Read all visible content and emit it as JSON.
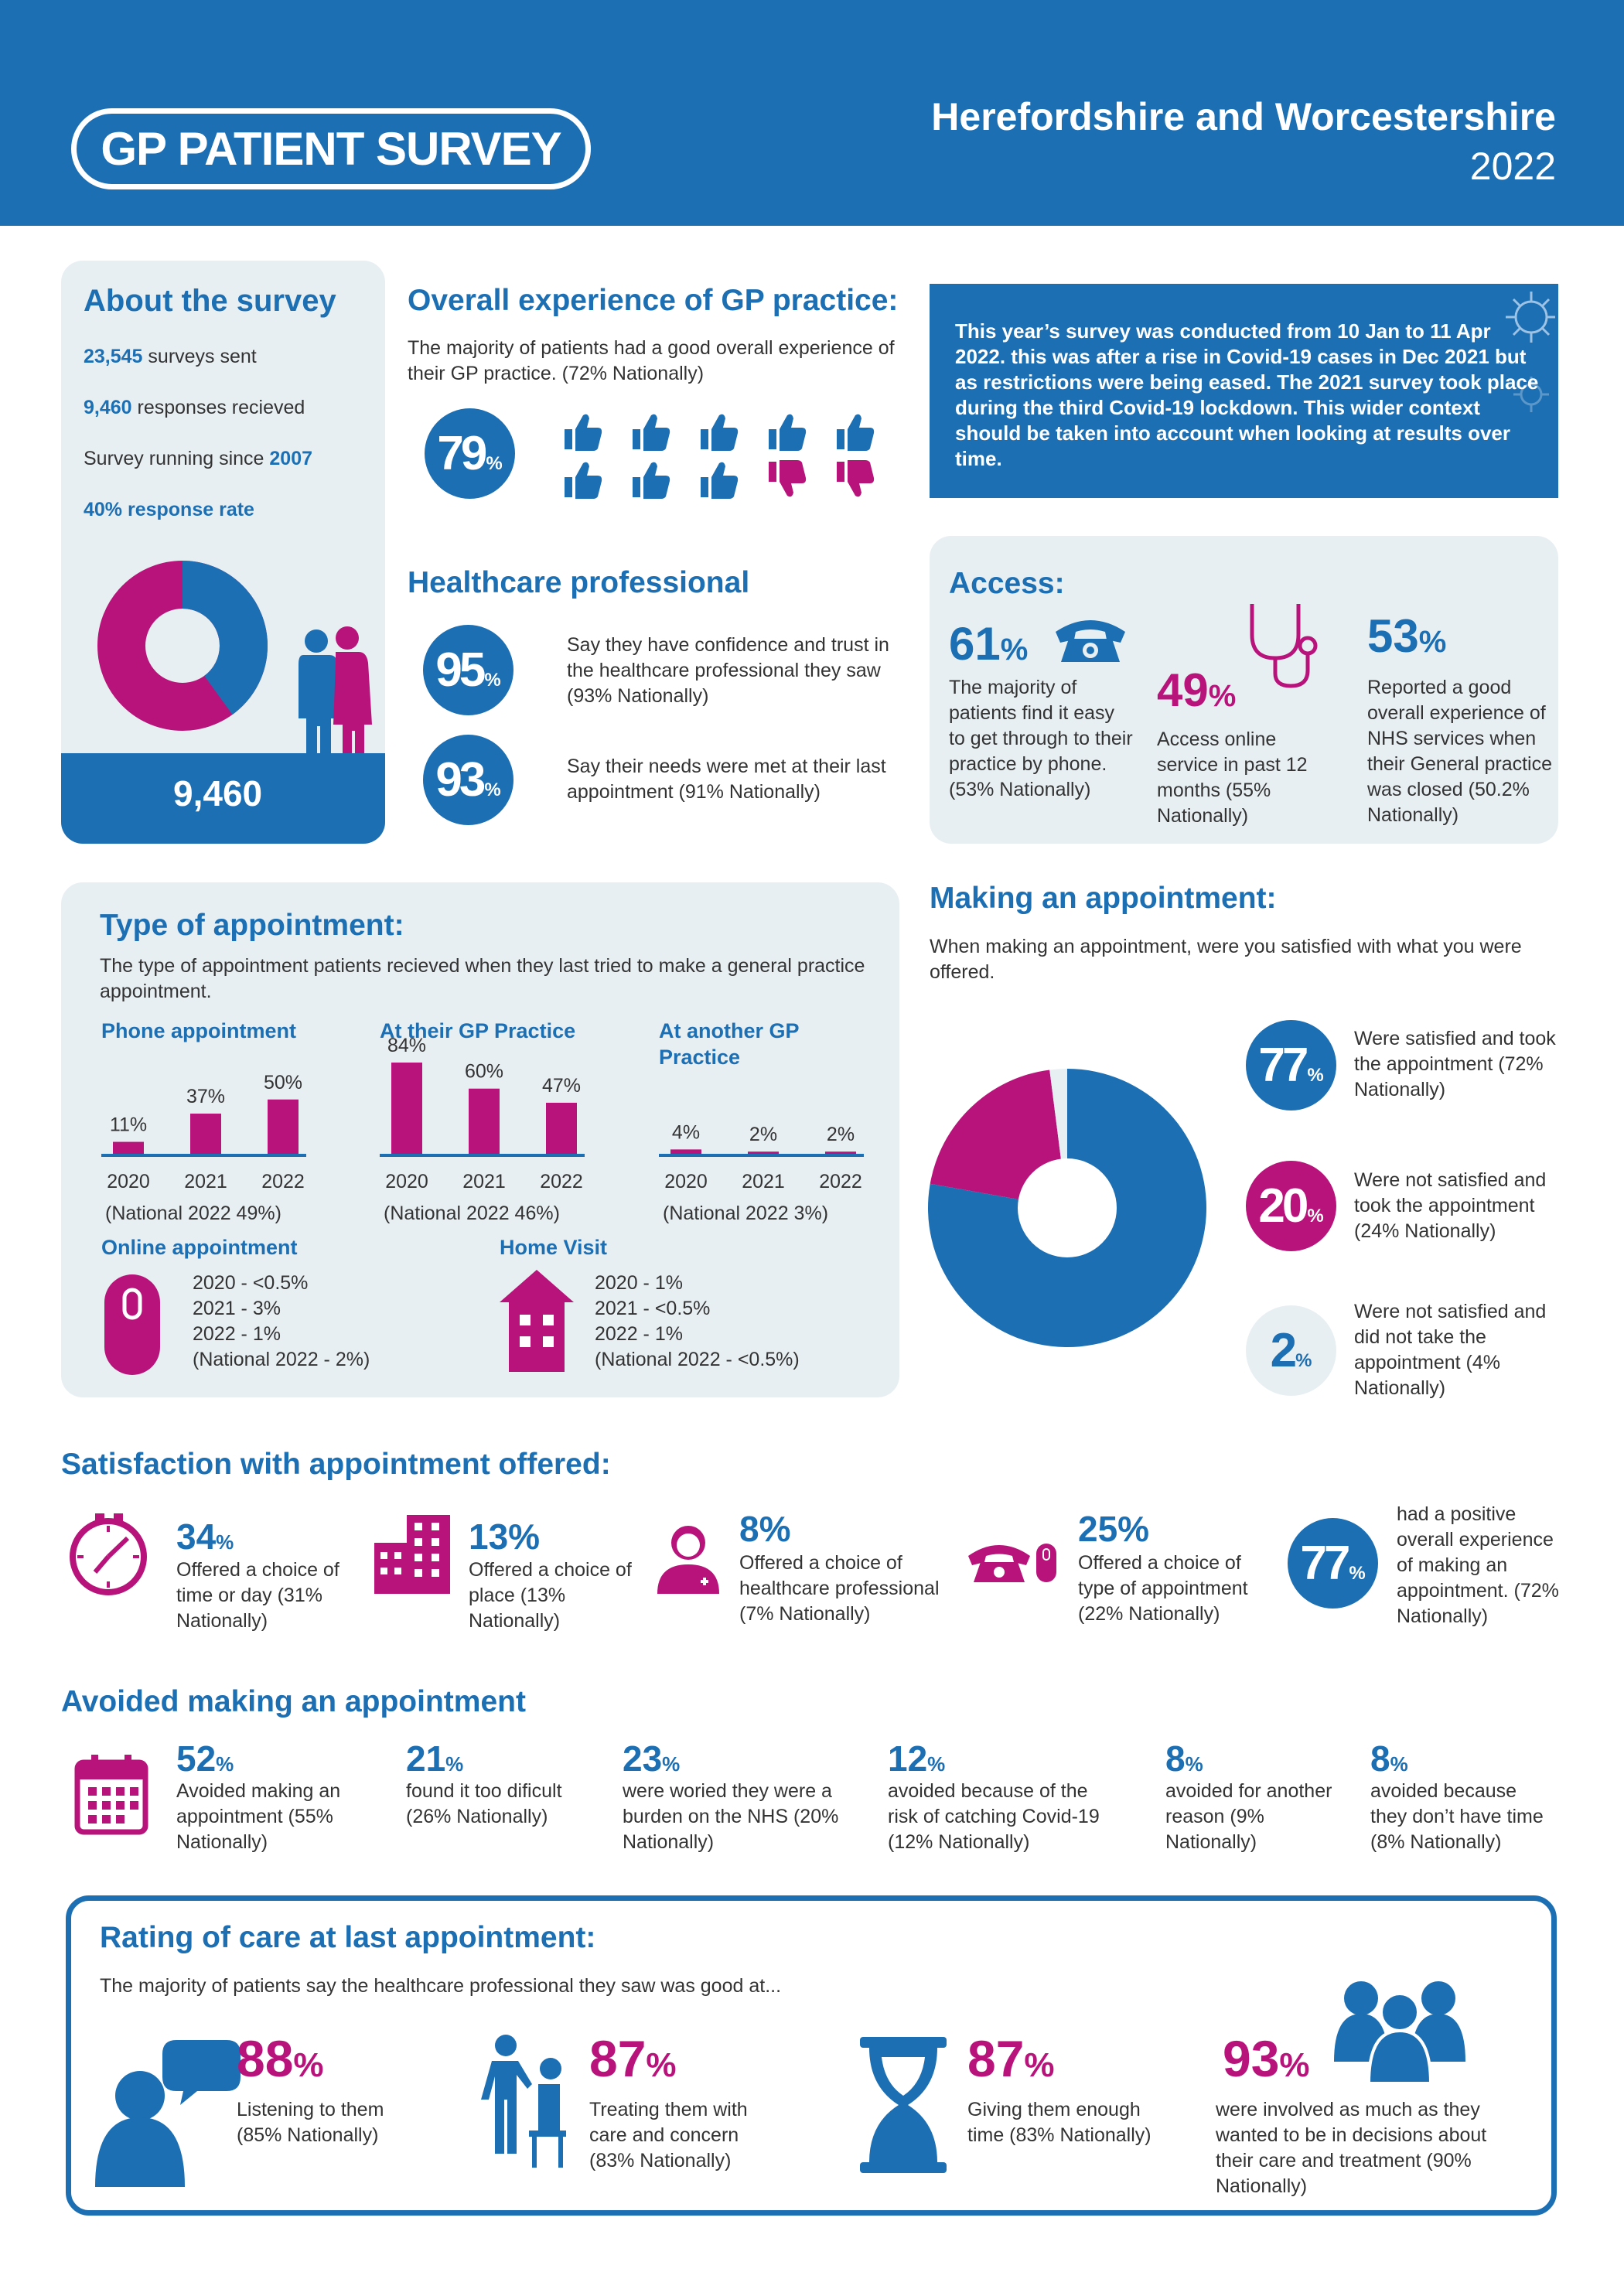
{
  "header": {
    "logo": "GP PATIENT SURVEY",
    "region": "Herefordshire and Worcestershire",
    "year": "2022"
  },
  "about": {
    "title": "About the survey",
    "sent_num": "23,545",
    "sent_text": " surveys sent",
    "resp_num": "9,460",
    "resp_text": " responses recieved",
    "since_text": "Survey running since ",
    "since_year": "2007",
    "rate": "40% response rate",
    "responses_donut": {
      "response_rate": 40
    },
    "total": "9,460"
  },
  "overall": {
    "title": "Overall experience of GP practice:",
    "text": "The majority of patients had a good overall experience of their GP practice. (72% Nationally)",
    "value": "79",
    "pct": "%",
    "thumbs_up": 8,
    "thumbs_down": 2
  },
  "context": {
    "text": "This year’s survey was conducted from 10 Jan to 11 Apr 2022. this was after a rise in Covid-19 cases in Dec 2021 but as restrictions were being eased. The 2021 survey took place during the third Covid-19 lockdown. This wider context should be taken into account when looking at results over time."
  },
  "healthcare": {
    "title": "Healthcare professional",
    "items": [
      {
        "value": "95",
        "pct": "%",
        "text": "Say they have confidence and trust in the healthcare professional they saw (93% Nationally)"
      },
      {
        "value": "93",
        "pct": "%",
        "text": "Say their needs were met at their last appointment (91% Nationally)"
      }
    ]
  },
  "access": {
    "title": "Access:",
    "items": [
      {
        "value": "61",
        "pct": "%",
        "text": "The majority of patients find it easy to get through to their practice by phone. (53% Nationally)"
      },
      {
        "value": "49",
        "pct": "%",
        "text": "Access online service in past 12 months (55% Nationally)"
      },
      {
        "value": "53",
        "pct": "%",
        "text": "Reported a good overall experience of NHS services when their General practice was closed (50.2% Nationally)"
      }
    ]
  },
  "type": {
    "title": "Type of appointment:",
    "text": "The type of appointment patients recieved when they last tried to make a general practice appointment.",
    "charts": [
      {
        "title": "Phone appointment",
        "title2": "",
        "years": [
          "2020",
          "2021",
          "2022"
        ],
        "values": [
          11,
          37,
          50
        ],
        "labels": [
          "11%",
          "37%",
          "50%"
        ],
        "national": "(National 2022 49%)"
      },
      {
        "title": "At their GP Practice",
        "title2": "",
        "years": [
          "2020",
          "2021",
          "2022"
        ],
        "values": [
          84,
          60,
          47
        ],
        "labels": [
          "84%",
          "60%",
          "47%"
        ],
        "national": "(National 2022 46%)"
      },
      {
        "title": "At another GP",
        "title2": "Practice",
        "years": [
          "2020",
          "2021",
          "2022"
        ],
        "values": [
          4,
          2,
          2
        ],
        "labels": [
          "4%",
          "2%",
          "2%"
        ],
        "national": "(National 2022 3%)"
      }
    ],
    "online": {
      "title": "Online appointment",
      "lines": [
        "2020 - <0.5%",
        "2021 - 3%",
        "2022 - 1%",
        "(National 2022 - 2%)"
      ]
    },
    "home": {
      "title": "Home Visit",
      "lines": [
        "2020 - 1%",
        "2021 - <0.5%",
        "2022 - 1%",
        "(National 2022 - <0.5%)"
      ]
    }
  },
  "making": {
    "title": "Making an appointment:",
    "text": "When making an appointment, were you satisfied with what you were offered.",
    "items": [
      {
        "value": "77",
        "pct": "%",
        "text": "Were satisfied and took the appointment (72% Nationally)"
      },
      {
        "value": "20",
        "pct": "%",
        "text": "Were not satisfied and took the appointment (24% Nationally)"
      },
      {
        "value": "2",
        "pct": "%",
        "text": "Were not satisfied and did not take the appointment (4% Nationally)"
      }
    ],
    "donut": {
      "satisfied_took": 77,
      "not_satisfied_took": 20,
      "not_satisfied_not_took": 2
    },
    "colors": {
      "satisfied": "#1c6fb3",
      "not_satisfied": "#b8137a",
      "other": "#e8eff3"
    }
  },
  "satisfaction": {
    "title": "Satisfaction with appointment offered:",
    "items": [
      {
        "value": "34",
        "pct": "%",
        "text": "Offered a choice of time or day (31% Nationally)"
      },
      {
        "value": "13",
        "pct": "%",
        "text": "Offered a choice of place (13% Nationally)"
      },
      {
        "value": "8",
        "pct": "%",
        "text": "Offered a choice of healthcare professional (7% Nationally)"
      },
      {
        "value": "25",
        "pct": "%",
        "text": "Offered a choice of type of appointment (22% Nationally)"
      }
    ],
    "positive": {
      "value": "77",
      "pct": "%",
      "text": "had a positive overall experience of making an appointment. (72% Nationally)"
    }
  },
  "avoided": {
    "title": "Avoided making an appointment",
    "items": [
      {
        "value": "52",
        "pct": "%",
        "text": "Avoided making an appointment (55% Nationally)"
      },
      {
        "value": "21",
        "pct": "%",
        "text": "found it too dificult (26% Nationally)"
      },
      {
        "value": "23",
        "pct": "%",
        "text": "were woried they were a burden on the NHS (20% Nationally)"
      },
      {
        "value": "12",
        "pct": "%",
        "text": "avoided because of the risk of catching Covid-19 (12% Nationally)"
      },
      {
        "value": "8",
        "pct": "%",
        "text": "avoided for another reason (9% Nationally)"
      },
      {
        "value": "8",
        "pct": "%",
        "text": "avoided because they don’t have time (8% Nationally)"
      }
    ]
  },
  "rating": {
    "title": "Rating of care at last appointment:",
    "text": "The majority of patients say the healthcare professional they saw was good at...",
    "items": [
      {
        "value": "88",
        "pct": "%",
        "text": "Listening to them (85% Nationally)"
      },
      {
        "value": "87",
        "pct": "%",
        "text": "Treating them with care and concern (83% Nationally)"
      },
      {
        "value": "87",
        "pct": "%",
        "text": "Giving them enough time (83% Nationally)"
      },
      {
        "value": "93",
        "pct": "%",
        "text": "were involved as much as they wanted to be in decisions about their care and treatment (90% Nationally)"
      }
    ]
  },
  "colors": {
    "primary": "#1c6fb3",
    "accent": "#b8137a",
    "panel": "#e8eff3"
  }
}
